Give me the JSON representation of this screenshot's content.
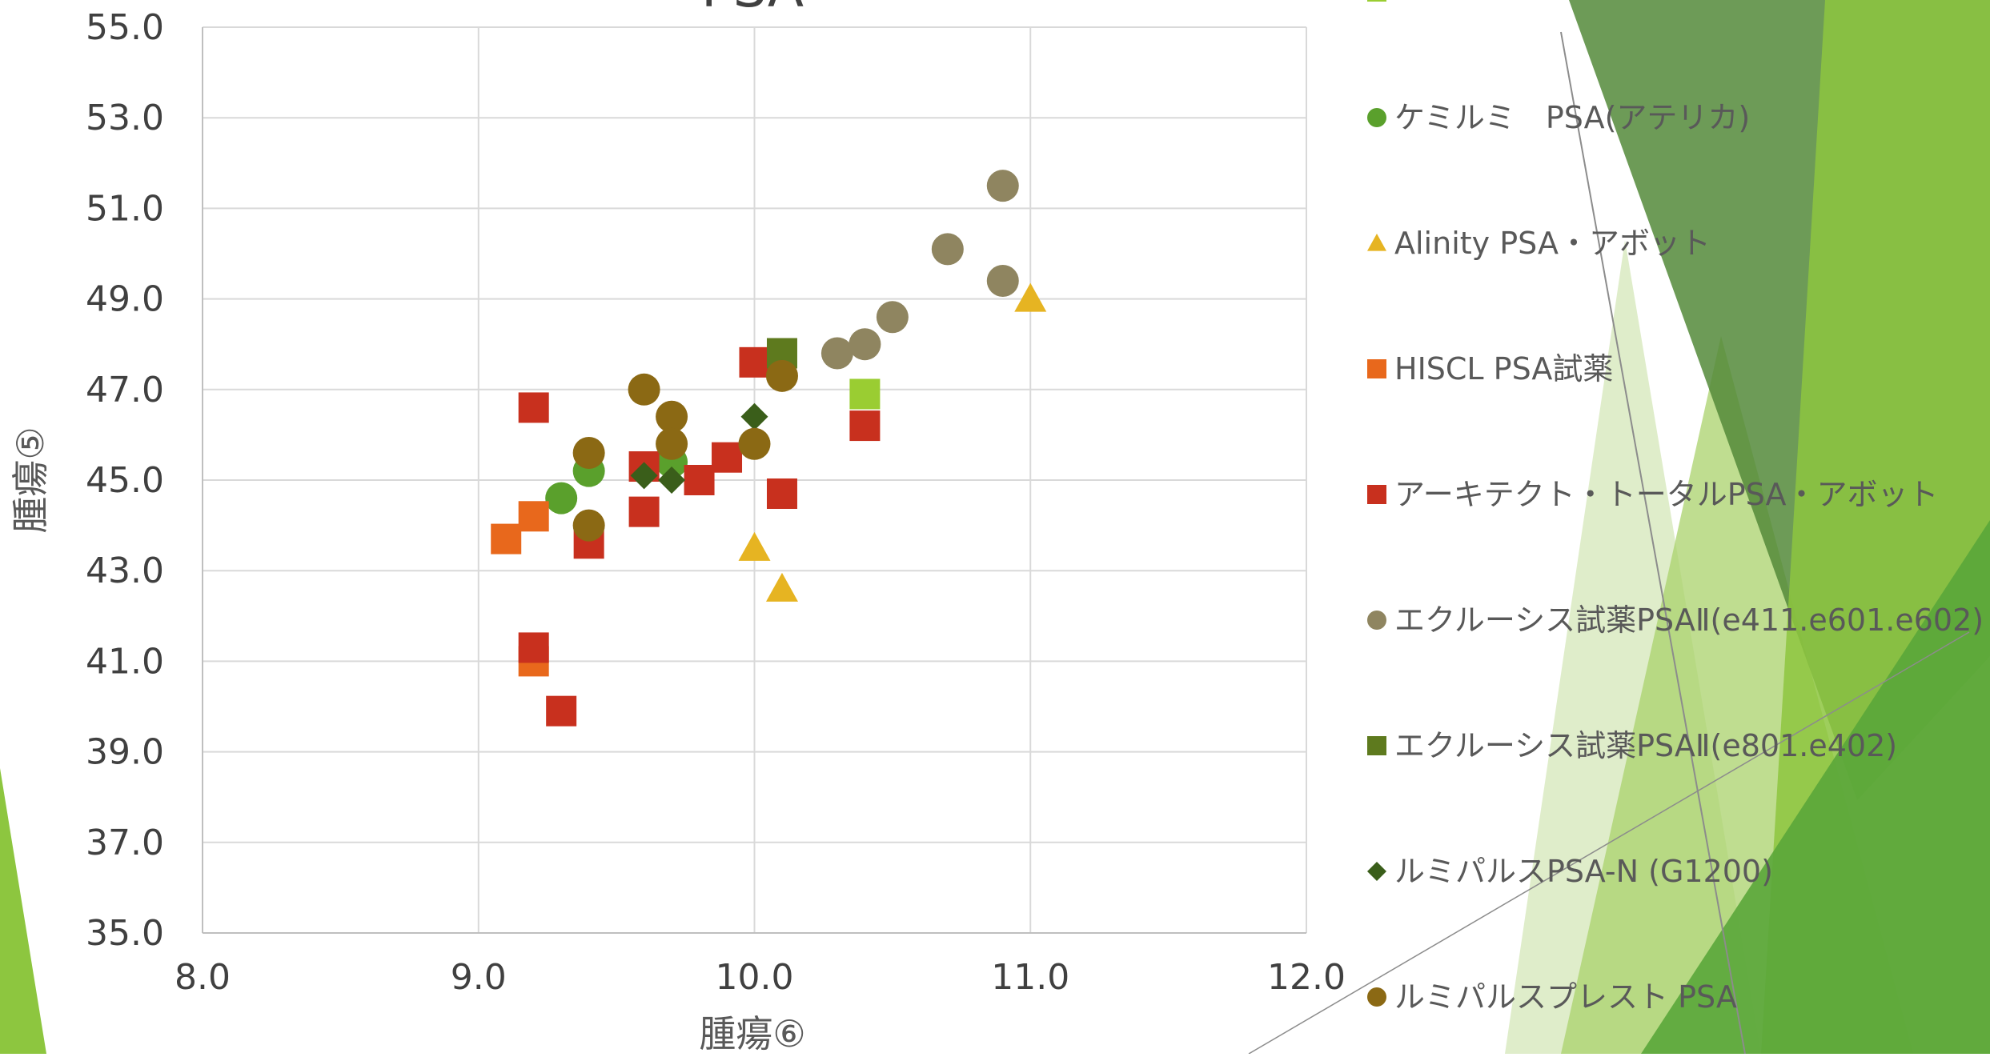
{
  "chart_data": {
    "type": "scatter",
    "title": "PSA",
    "xlabel": "腫瘍⑥",
    "ylabel": "腫瘍⑤",
    "xlim": [
      8.0,
      12.0
    ],
    "ylim": [
      35.0,
      55.0
    ],
    "xticks": [
      "8.0",
      "9.0",
      "10.0",
      "11.0",
      "12.0"
    ],
    "yticks": [
      "35.0",
      "37.0",
      "39.0",
      "41.0",
      "43.0",
      "45.0",
      "47.0",
      "49.0",
      "51.0",
      "53.0",
      "55.0"
    ],
    "grid": true,
    "legend_position": "right",
    "series": [
      {
        "name": "",
        "marker": "square",
        "color": "#9ACD32",
        "points": [
          [
            10.4,
            46.9
          ]
        ]
      },
      {
        "name": "ケミルミ　PSA(アテリカ)",
        "marker": "circle",
        "color": "#5AA02C",
        "points": [
          [
            9.3,
            44.6
          ],
          [
            9.4,
            45.2
          ],
          [
            9.7,
            45.4
          ]
        ]
      },
      {
        "name": "Alinity PSA・アボット",
        "marker": "triangle",
        "color": "#E6B422",
        "points": [
          [
            10.0,
            43.5
          ],
          [
            10.1,
            42.6
          ],
          [
            11.0,
            49.0
          ]
        ]
      },
      {
        "name": "HISCL PSA試薬",
        "marker": "square",
        "color": "#E8681C",
        "points": [
          [
            9.1,
            43.7
          ],
          [
            9.2,
            44.2
          ],
          [
            9.2,
            41.0
          ]
        ]
      },
      {
        "name": "アーキテクト・トータルPSA・アボット",
        "marker": "square",
        "color": "#C8301E",
        "points": [
          [
            9.2,
            46.6
          ],
          [
            9.2,
            41.3
          ],
          [
            9.3,
            39.9
          ],
          [
            9.4,
            43.6
          ],
          [
            9.6,
            45.3
          ],
          [
            9.6,
            44.3
          ],
          [
            9.8,
            45.0
          ],
          [
            9.9,
            45.5
          ],
          [
            10.0,
            47.6
          ],
          [
            10.1,
            44.7
          ],
          [
            10.4,
            46.2
          ]
        ]
      },
      {
        "name": "エクルーシス試薬PSAⅡ(e411.e601.e602)",
        "marker": "circle",
        "color": "#8F8560",
        "points": [
          [
            10.3,
            47.8
          ],
          [
            10.4,
            48.0
          ],
          [
            10.5,
            48.6
          ],
          [
            10.7,
            50.1
          ],
          [
            10.9,
            51.5
          ],
          [
            10.9,
            49.4
          ]
        ]
      },
      {
        "name": "エクルーシス試薬PSAⅡ(e801.e402)",
        "marker": "square",
        "color": "#5E7A1E",
        "points": [
          [
            10.1,
            47.8
          ]
        ]
      },
      {
        "name": "ルミパルスPSA-N (G1200)",
        "marker": "diamond",
        "color": "#3A5E1A",
        "points": [
          [
            9.6,
            45.1
          ],
          [
            9.7,
            45.0
          ],
          [
            10.0,
            46.4
          ]
        ]
      },
      {
        "name": "ルミパルスプレスト PSA",
        "marker": "circle",
        "color": "#8B6914",
        "points": [
          [
            9.4,
            45.6
          ],
          [
            9.4,
            44.0
          ],
          [
            9.6,
            47.0
          ],
          [
            9.7,
            46.4
          ],
          [
            9.7,
            45.8
          ],
          [
            10.0,
            45.8
          ],
          [
            10.1,
            47.3
          ]
        ]
      }
    ]
  }
}
